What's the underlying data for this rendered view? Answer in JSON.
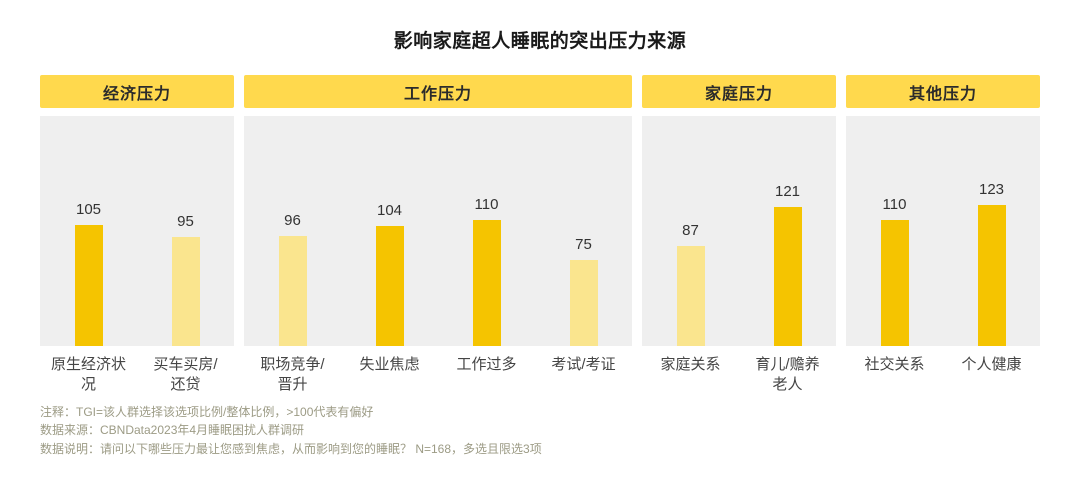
{
  "title": "影响家庭超人睡眠的突出压力来源",
  "colors": {
    "header_bg": "#FFD94D",
    "panel_bg": "#EFEFEF",
    "bar_high": "#F5C400",
    "bar_low": "#FAE58E",
    "note_color": "#9C9B85"
  },
  "chart_data": {
    "type": "bar",
    "title": "影响家庭超人睡眠的突出压力来源",
    "xlabel": "",
    "ylabel": "",
    "ylim": [
      0,
      200
    ],
    "grid": false,
    "legend": "none",
    "threshold": 100,
    "color_rule": "value > 100 uses bar_high (dark yellow), otherwise bar_low (pale yellow)",
    "groups": [
      {
        "label": "经济压力",
        "bars": [
          {
            "category": "原生经济状况",
            "value": 105
          },
          {
            "category": "买车买房/还贷",
            "value": 95
          }
        ]
      },
      {
        "label": "工作压力",
        "bars": [
          {
            "category": "职场竞争/晋升",
            "value": 96
          },
          {
            "category": "失业焦虑",
            "value": 104
          },
          {
            "category": "工作过多",
            "value": 110
          },
          {
            "category": "考试/考证",
            "value": 75
          }
        ]
      },
      {
        "label": "家庭压力",
        "bars": [
          {
            "category": "家庭关系",
            "value": 87
          },
          {
            "category": "育儿/赡养老人",
            "value": 121
          }
        ]
      },
      {
        "label": "其他压力",
        "bars": [
          {
            "category": "社交关系",
            "value": 110
          },
          {
            "category": "个人健康",
            "value": 123
          }
        ]
      }
    ]
  },
  "notes": [
    "注释：TGI=该人群选择该选项比例/整体比例，>100代表有偏好",
    "数据来源：CBNData2023年4月睡眠困扰人群调研",
    "数据说明：请问以下哪些压力最让您感到焦虑，从而影响到您的睡眠？ N=168，多选且限选3项"
  ]
}
